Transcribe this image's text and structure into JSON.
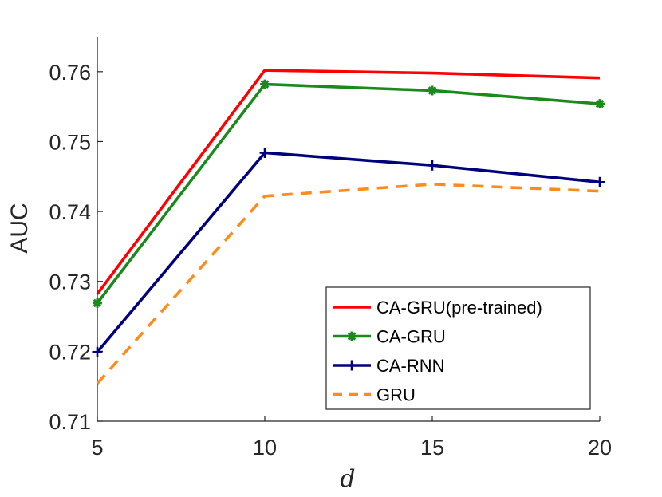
{
  "chart_data": {
    "type": "line",
    "xlabel": "d",
    "ylabel": "AUC",
    "x": [
      5,
      10,
      15,
      20
    ],
    "xlim": [
      5,
      20
    ],
    "ylim": [
      0.71,
      0.765
    ],
    "xticks": [
      5,
      10,
      15,
      20
    ],
    "xtick_labels": [
      "5",
      "10",
      "15",
      "20"
    ],
    "yticks": [
      0.71,
      0.72,
      0.73,
      0.74,
      0.75,
      0.76
    ],
    "ytick_labels": [
      "0.71",
      "0.72",
      "0.73",
      "0.74",
      "0.75",
      "0.76"
    ],
    "grid": false,
    "legend_position": "bottom-right",
    "series": [
      {
        "name": "CA-GRU(pre-trained)",
        "values": [
          0.7282,
          0.7602,
          0.7598,
          0.7591
        ],
        "color": "#ff0000",
        "marker": "none",
        "dash": "solid"
      },
      {
        "name": "CA-GRU",
        "values": [
          0.7269,
          0.7582,
          0.7573,
          0.7554
        ],
        "color": "#1a8a1a",
        "marker": "asterisk",
        "dash": "solid"
      },
      {
        "name": "CA-RNN",
        "values": [
          0.7199,
          0.7484,
          0.7466,
          0.7442
        ],
        "color": "#00007f",
        "marker": "plus",
        "dash": "solid"
      },
      {
        "name": "GRU",
        "values": [
          0.7154,
          0.7422,
          0.7439,
          0.7429
        ],
        "color": "#ff8c1a",
        "marker": "none",
        "dash": "dashed"
      }
    ]
  }
}
